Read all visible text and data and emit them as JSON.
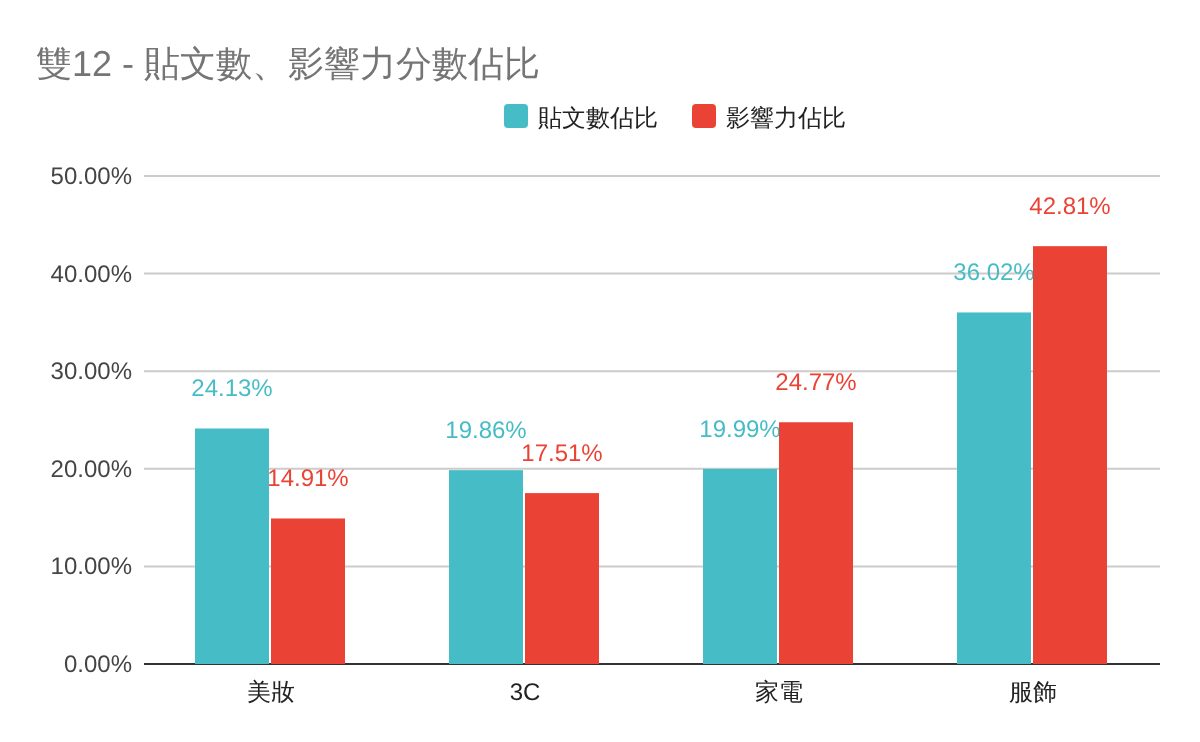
{
  "chart_data": {
    "type": "bar",
    "title": "雙12 - 貼文數、影響力分數佔比",
    "categories": [
      "美妝",
      "3C",
      "家電",
      "服飾"
    ],
    "series": [
      {
        "name": "貼文數佔比",
        "color": "#46bdc6",
        "values": [
          24.13,
          19.86,
          19.99,
          36.02
        ],
        "value_labels": [
          "24.13%",
          "19.86%",
          "19.99%",
          "36.02%"
        ]
      },
      {
        "name": "影響力佔比",
        "color": "#ea4335",
        "values": [
          14.91,
          17.51,
          24.77,
          42.81
        ],
        "value_labels": [
          "14.91%",
          "17.51%",
          "24.77%",
          "42.81%"
        ]
      }
    ],
    "ylim": [
      0,
      50
    ],
    "yticks": [
      {
        "value": 0,
        "label": "0.00%"
      },
      {
        "value": 10,
        "label": "10.00%"
      },
      {
        "value": 20,
        "label": "20.00%"
      },
      {
        "value": 30,
        "label": "30.00%"
      },
      {
        "value": 40,
        "label": "40.00%"
      },
      {
        "value": 50,
        "label": "50.00%"
      }
    ],
    "grid": "y",
    "legend": "top"
  }
}
